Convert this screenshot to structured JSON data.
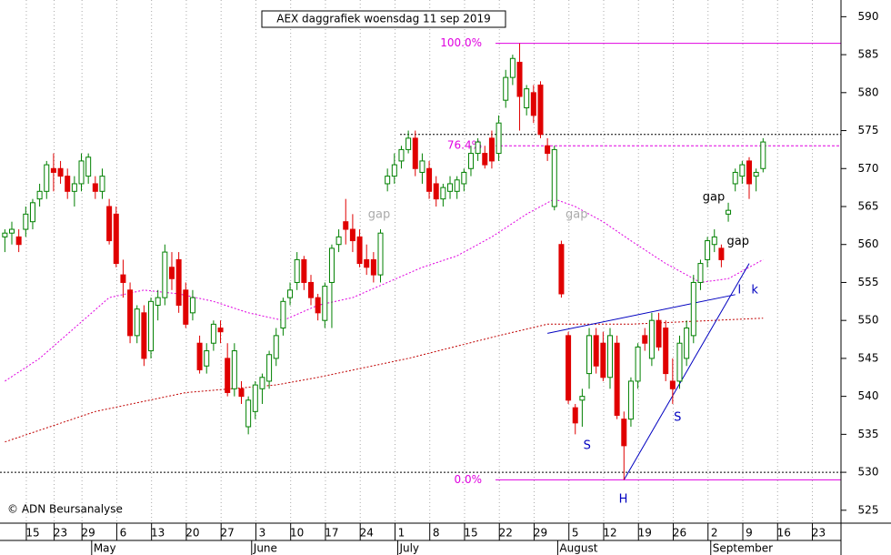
{
  "chart_data": {
    "type": "candlestick",
    "title": "AEX daggrafiek woensdag 11 sep 2019",
    "open": [
      561,
      561.5,
      561,
      562,
      563,
      566,
      567,
      570,
      570,
      569,
      567,
      568,
      569,
      568,
      567,
      565,
      564,
      556,
      554,
      548,
      551,
      546,
      552,
      553,
      557,
      558,
      554,
      551,
      547,
      544,
      547,
      549,
      545,
      541,
      541,
      536,
      538,
      541,
      542,
      545,
      549,
      553,
      555,
      558,
      555,
      553,
      550,
      555,
      560,
      563,
      562,
      561,
      558,
      558,
      556,
      568,
      569,
      571,
      572.5,
      574,
      569.5,
      570,
      568,
      566,
      567,
      567,
      568,
      570,
      572,
      572,
      574,
      572,
      579,
      582,
      584,
      578,
      580,
      581,
      573,
      565,
      560,
      548,
      538.5,
      539.5,
      543,
      548,
      547,
      542.5,
      547,
      537,
      537,
      542,
      548,
      545,
      550,
      549,
      542,
      542,
      545,
      548,
      555,
      558,
      560,
      559.5,
      564,
      568,
      569,
      571,
      569,
      570
    ],
    "high": [
      562,
      563,
      562,
      565,
      566,
      568,
      571,
      572,
      571,
      570,
      569,
      572,
      572,
      569,
      570,
      566,
      565,
      558,
      555,
      552,
      552,
      553,
      554,
      560,
      559,
      559,
      555,
      554,
      548,
      547,
      550,
      550,
      547,
      547,
      542,
      540,
      542,
      543,
      546,
      549,
      553,
      555,
      559,
      558.5,
      556,
      553.5,
      555,
      560,
      562,
      566,
      564,
      562,
      560,
      559,
      562,
      570,
      572,
      573,
      575,
      575,
      572,
      571,
      569,
      568,
      569,
      569,
      570,
      573,
      574,
      573,
      575,
      577,
      583,
      585,
      586.5,
      581,
      581,
      581.5,
      574,
      573,
      560.5,
      548.5,
      539,
      541,
      549,
      549,
      548.5,
      549,
      548,
      538,
      542.5,
      547,
      549,
      551,
      551,
      550,
      545,
      548,
      550,
      556,
      558,
      561,
      562,
      560,
      565.5,
      570,
      571,
      571.5,
      570,
      574
    ],
    "low": [
      559,
      560,
      559,
      561,
      562,
      565,
      566,
      567,
      568,
      566,
      565,
      567,
      568,
      566,
      566,
      560,
      557,
      553,
      547,
      547,
      544,
      545,
      550,
      552,
      554,
      551,
      549,
      550,
      543,
      543,
      546,
      547,
      540,
      540,
      539,
      535,
      537,
      539,
      541,
      544,
      548,
      552,
      554,
      554,
      552,
      550,
      549,
      549,
      559,
      560,
      559,
      557,
      556,
      555,
      555,
      567,
      568,
      570,
      572,
      569,
      568,
      566,
      565,
      565,
      566,
      566,
      567,
      569,
      571,
      570,
      570,
      571,
      578,
      581,
      575,
      577,
      576,
      574,
      571,
      564.5,
      553,
      539,
      535,
      536,
      541,
      543,
      542,
      541,
      537,
      529,
      536,
      541,
      546,
      544,
      546,
      542,
      539,
      541,
      544,
      547,
      554,
      557,
      559,
      557,
      563,
      567,
      568,
      566,
      567,
      569.5
    ],
    "close": [
      561.5,
      562,
      560,
      564,
      565.5,
      567,
      570.5,
      569.5,
      569,
      567,
      568,
      571,
      571.5,
      567,
      569,
      560.5,
      557.5,
      555,
      548,
      551.5,
      545,
      552.5,
      553,
      559,
      555.5,
      552,
      549.5,
      553,
      543.5,
      546,
      549.5,
      548.5,
      540.5,
      546,
      540,
      539.5,
      541.5,
      542.5,
      545.5,
      548,
      552.5,
      554,
      558,
      555,
      553,
      551,
      554.5,
      559.5,
      561,
      562,
      560.5,
      557.5,
      557,
      556,
      561.5,
      569,
      570.5,
      572.5,
      574,
      570,
      571,
      567,
      566,
      567.5,
      568,
      568.5,
      569.5,
      572,
      573.5,
      570.5,
      571,
      576,
      582,
      584.5,
      579.5,
      580.5,
      577,
      574.5,
      572,
      572.5,
      553.5,
      539.5,
      536.5,
      540,
      548,
      544,
      542.5,
      548,
      537.5,
      533.5,
      542,
      546.5,
      547,
      550,
      546.5,
      543,
      541,
      547,
      549,
      555,
      557.5,
      560.5,
      561,
      558,
      564.5,
      569.5,
      570.5,
      568,
      569.5,
      573.5
    ],
    "up_color": "#008000",
    "down_color": "#e00000",
    "xlim": [
      -0.7,
      120.2
    ],
    "ylim": [
      523.3,
      592.2
    ],
    "yticks": [
      525,
      530,
      535,
      540,
      545,
      550,
      555,
      560,
      565,
      570,
      575,
      580,
      585,
      590
    ],
    "xticks": [
      {
        "value": 4,
        "label": "15"
      },
      {
        "value": 8,
        "label": "23"
      },
      {
        "value": 12,
        "label": "29"
      },
      {
        "value": 17,
        "label": "6"
      },
      {
        "value": 22,
        "label": "13"
      },
      {
        "value": 27,
        "label": "20"
      },
      {
        "value": 32,
        "label": "27"
      },
      {
        "value": 37,
        "label": "3"
      },
      {
        "value": 42,
        "label": "10"
      },
      {
        "value": 47,
        "label": "17"
      },
      {
        "value": 52,
        "label": "24"
      },
      {
        "value": 57,
        "label": "1"
      },
      {
        "value": 62,
        "label": "8"
      },
      {
        "value": 67,
        "label": "15"
      },
      {
        "value": 72,
        "label": "22"
      },
      {
        "value": 77,
        "label": "29"
      },
      {
        "value": 82,
        "label": "5"
      },
      {
        "value": 87,
        "label": "12"
      },
      {
        "value": 92,
        "label": "19"
      },
      {
        "value": 97,
        "label": "26"
      },
      {
        "value": 102,
        "label": "2"
      },
      {
        "value": 107,
        "label": "9"
      },
      {
        "value": 112,
        "label": "16"
      },
      {
        "value": 117,
        "label": "23"
      }
    ],
    "month_ticks": [
      {
        "value": 13,
        "label": "May"
      },
      {
        "value": 36,
        "label": "June"
      },
      {
        "value": 57,
        "label": "July"
      },
      {
        "value": 80,
        "label": "August"
      },
      {
        "value": 102,
        "label": "September"
      }
    ],
    "grid": "x",
    "moving_averages": [
      {
        "color": "#e000e0",
        "x": [
          0,
          5,
          10,
          15,
          20,
          25,
          30,
          35,
          40,
          45,
          50,
          55,
          60,
          65,
          70,
          75,
          79,
          82,
          86,
          90,
          95,
          100,
          104,
          109
        ],
        "values": [
          542,
          545,
          549,
          553,
          554,
          553.5,
          552.5,
          551,
          550,
          552,
          553,
          555,
          557,
          558.5,
          561,
          564,
          566,
          565,
          563,
          560.5,
          557.5,
          555,
          555.5,
          558
        ]
      },
      {
        "color": "#c00000",
        "x": [
          0,
          13,
          26,
          39,
          45,
          58,
          71,
          78,
          90,
          109
        ],
        "values": [
          534,
          538,
          540.5,
          541.5,
          542.5,
          545,
          548,
          549.5,
          549.5,
          550.3
        ]
      }
    ],
    "fib_levels": [
      {
        "label": "100.0%",
        "value": 586.5
      },
      {
        "label": "76.4%",
        "value": 573
      },
      {
        "label": "0.0%",
        "value": 529
      }
    ],
    "level_color": "#e000e0",
    "support_lines": [
      574.5,
      530
    ],
    "trendlines": [
      {
        "x": [
          78,
          105
        ],
        "values": [
          548.3,
          553.4
        ]
      },
      {
        "x": [
          89,
          107
        ],
        "values": [
          529,
          557.5
        ]
      }
    ],
    "trend_color": "#0000c0",
    "annotations": [
      "gap",
      "gap",
      "gap",
      "gap",
      "S",
      "S",
      "H",
      "l",
      "k"
    ],
    "copyright": "© ADN Beursanalyse"
  }
}
